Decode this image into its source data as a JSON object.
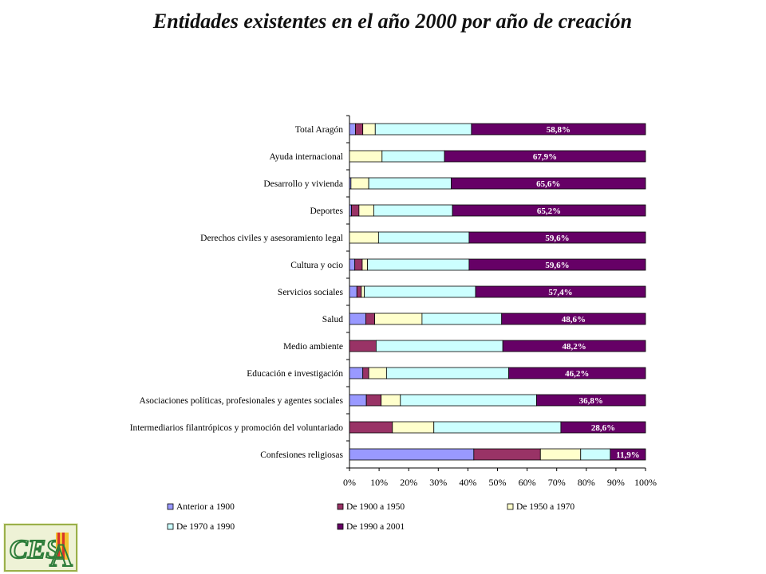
{
  "title": "Entidades existentes en el año 2000 por año de creación",
  "chart_data": {
    "type": "bar",
    "orientation": "horizontal",
    "stacked": "percent",
    "title": "Entidades existentes en el año 2000 por año de creación",
    "categories": [
      "Total Aragón",
      "Ayuda internacional",
      "Desarrollo y vivienda",
      "Deportes",
      "Derechos civiles y asesoramiento legal",
      "Cultura y ocio",
      "Servicios sociales",
      "Salud",
      "Medio ambiente",
      "Educación e investigación",
      "Asociaciones políticas, profesionales y agentes sociales",
      "Intermediarios filantrópicos y promoción del voluntariado",
      "Confesiones religiosas"
    ],
    "series": [
      {
        "name": "Anterior a 1900",
        "color": "#9999ff",
        "values": [
          2.0,
          0.0,
          0.5,
          0.7,
          0.0,
          1.8,
          2.5,
          5.5,
          0.0,
          4.5,
          5.7,
          0.0,
          42.0
        ]
      },
      {
        "name": "De 1900 a 1950",
        "color": "#993366",
        "values": [
          2.5,
          0.0,
          0.0,
          2.5,
          0.0,
          2.5,
          1.5,
          3.0,
          9.0,
          2.0,
          5.0,
          14.5,
          22.5
        ]
      },
      {
        "name": "De 1950 a 1970",
        "color": "#ffffcc",
        "values": [
          4.2,
          11.0,
          6.0,
          5.0,
          9.8,
          1.8,
          1.0,
          16.0,
          0.0,
          6.0,
          6.5,
          14.0,
          13.6
        ]
      },
      {
        "name": "De 1970 a 1990",
        "color": "#ccffff",
        "values": [
          32.5,
          21.1,
          27.9,
          26.6,
          30.6,
          34.3,
          37.6,
          26.9,
          42.8,
          41.3,
          46.0,
          42.9,
          10.0
        ]
      },
      {
        "name": "De 1990 a 2001",
        "color": "#660066",
        "values": [
          58.8,
          67.9,
          65.6,
          65.2,
          59.6,
          59.6,
          57.4,
          48.6,
          48.2,
          46.2,
          36.8,
          28.6,
          11.9
        ]
      }
    ],
    "data_labels": [
      "58,8%",
      "67,9%",
      "65,6%",
      "65,2%",
      "59,6%",
      "59,6%",
      "57,4%",
      "48,6%",
      "48,2%",
      "46,2%",
      "36,8%",
      "28,6%",
      "11,9%"
    ],
    "xticks": [
      "0%",
      "10%",
      "20%",
      "30%",
      "40%",
      "50%",
      "60%",
      "70%",
      "80%",
      "90%",
      "100%"
    ],
    "xlim": [
      0,
      100
    ],
    "grid": false,
    "legend_placement": "bottom",
    "logo_text": "CESA"
  }
}
